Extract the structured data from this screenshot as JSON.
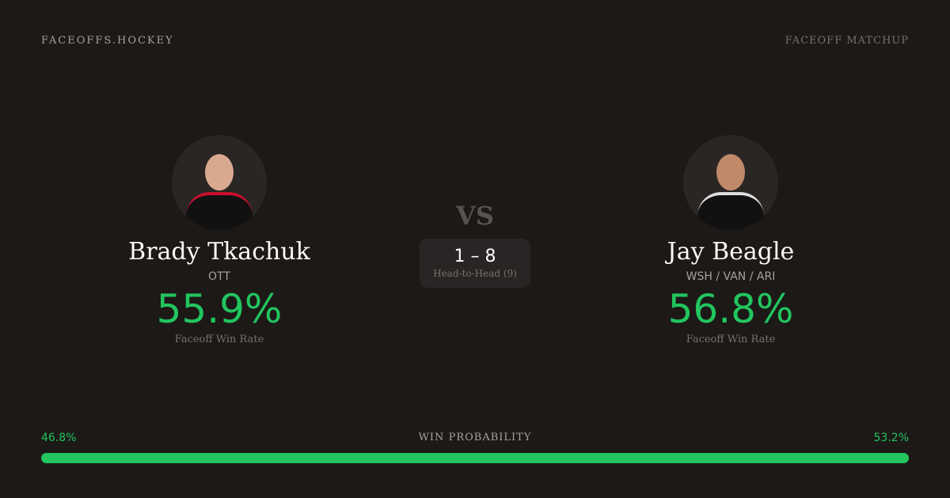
{
  "header": {
    "brand": "FACEOFFS.HOCKEY",
    "tag": "FACEOFF MATCHUP"
  },
  "players": [
    {
      "name": "Brady Tkachuk",
      "team": "OTT",
      "win_rate": "55.9%",
      "win_rate_label": "Faceoff Win Rate",
      "jersey_color": "#1a1a1a",
      "accent": "#c8102e"
    },
    {
      "name": "Jay Beagle",
      "team": "WSH / VAN / ARI",
      "win_rate": "56.8%",
      "win_rate_label": "Faceoff Win Rate",
      "jersey_color": "#1a1a1a",
      "accent": "#ffffff"
    }
  ],
  "vs": "VS",
  "head_to_head": {
    "score": "1 – 8",
    "label": "Head-to-Head (9)"
  },
  "win_probability": {
    "label": "WIN PROBABILITY",
    "left": "46.8%",
    "right": "53.2%",
    "bar_color": "#22c55e"
  }
}
